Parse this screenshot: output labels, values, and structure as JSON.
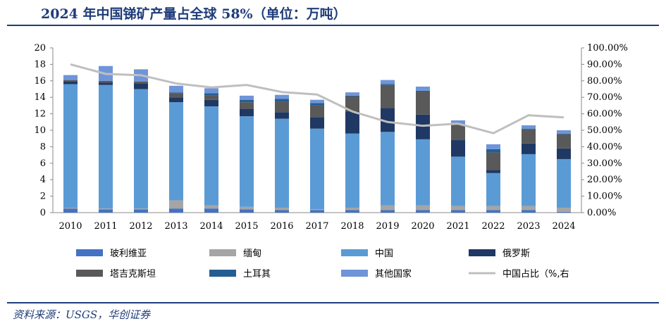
{
  "title": "2024 年中国锑矿产量占全球 58%（单位：万吨）",
  "source": "资料来源：USGS，华创证券",
  "colors": {
    "title": "#1f3d7a",
    "bolivia": "#4472c4",
    "myanmar": "#a5a5a5",
    "china": "#5b9bd5",
    "russia": "#203864",
    "tajikistan": "#595959",
    "turkey": "#255e91",
    "others": "#6f95d8",
    "share_line": "#bfbfbf"
  },
  "chart_data": {
    "type": "bar",
    "stacked": true,
    "title": "2024 年中国锑矿产量占全球 58%（单位：万吨）",
    "categories": [
      "2010",
      "2011",
      "2012",
      "2013",
      "2014",
      "2015",
      "2016",
      "2017",
      "2018",
      "2019",
      "2020",
      "2021",
      "2022",
      "2023",
      "2024"
    ],
    "ylim": [
      0,
      20
    ],
    "y_ticks": [
      "0",
      "2",
      "4",
      "6",
      "8",
      "10",
      "12",
      "14",
      "16",
      "18",
      "20"
    ],
    "y2lim": [
      0,
      100
    ],
    "y2_ticks": [
      "0.00%",
      "10.00%",
      "20.00%",
      "30.00%",
      "40.00%",
      "50.00%",
      "60.00%",
      "70.00%",
      "80.00%",
      "90.00%",
      "100.00%"
    ],
    "series": [
      {
        "name": "玻利维亚",
        "key": "bolivia",
        "values": [
          0.5,
          0.4,
          0.4,
          0.5,
          0.5,
          0.4,
          0.3,
          0.3,
          0.3,
          0.3,
          0.3,
          0.3,
          0.3,
          0.3,
          0.1
        ]
      },
      {
        "name": "缅甸",
        "key": "myanmar",
        "values": [
          0.1,
          0.1,
          0.1,
          1.0,
          0.4,
          0.3,
          0.3,
          0.1,
          0.3,
          0.6,
          0.6,
          0.5,
          0.5,
          0.5,
          0.5
        ]
      },
      {
        "name": "中国",
        "key": "china",
        "values": [
          15.0,
          15.0,
          14.5,
          11.9,
          12.0,
          11.0,
          10.8,
          9.8,
          9.0,
          8.9,
          8.0,
          6.0,
          4.0,
          6.3,
          5.9
        ]
      },
      {
        "name": "俄罗斯",
        "key": "russia",
        "values": [
          0.3,
          0.3,
          0.7,
          0.6,
          0.8,
          0.9,
          0.8,
          1.4,
          2.7,
          2.9,
          3.0,
          2.0,
          0.4,
          1.3,
          1.3
        ]
      },
      {
        "name": "塔吉克斯坦",
        "key": "tajikistan",
        "values": [
          0.2,
          0.2,
          0.2,
          0.5,
          0.5,
          0.8,
          1.3,
          1.4,
          1.8,
          2.8,
          2.8,
          1.9,
          2.1,
          1.7,
          1.7
        ]
      },
      {
        "name": "土耳其",
        "key": "turkey",
        "values": [
          0.0,
          0.0,
          0.0,
          0.1,
          0.3,
          0.3,
          0.3,
          0.3,
          0.1,
          0.1,
          0.1,
          0.0,
          0.4,
          0.1,
          0.1
        ]
      },
      {
        "name": "其他国家",
        "key": "others",
        "values": [
          0.6,
          1.8,
          1.5,
          0.8,
          0.6,
          0.5,
          0.5,
          0.4,
          0.4,
          0.5,
          0.5,
          0.5,
          0.6,
          0.4,
          0.4
        ]
      }
    ],
    "line_series": {
      "name": "中国占比（%,右",
      "key": "share_line",
      "axis": "right",
      "values": [
        90.0,
        84.2,
        83.4,
        78.4,
        76.0,
        77.5,
        73.2,
        71.7,
        61.4,
        55.0,
        52.7,
        54.0,
        48.2,
        59.1,
        57.8
      ]
    },
    "legend": [
      "玻利维亚",
      "缅甸",
      "中国",
      "俄罗斯",
      "塔吉克斯坦",
      "土耳其",
      "其他国家",
      "中国占比（%,右"
    ],
    "legend_position": "bottom",
    "grid": false
  }
}
